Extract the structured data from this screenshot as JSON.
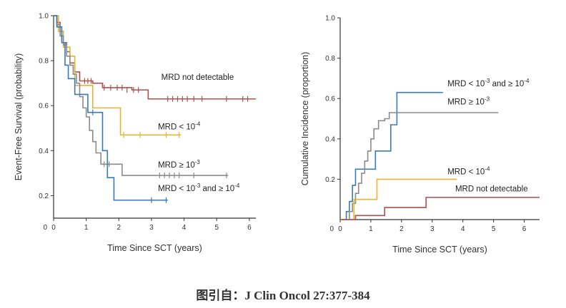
{
  "caption": "图引自：J Clin Oncol 27:377-384",
  "chart_data": [
    {
      "type": "line",
      "step": true,
      "xlabel": "Time Since SCT (years)",
      "ylabel": "Event-Free Survival (probability)",
      "xlim": [
        0,
        6.2
      ],
      "ylim": [
        0.1,
        1.0
      ],
      "xticks": [
        0,
        1,
        2,
        3,
        4,
        5,
        6
      ],
      "yticks": [
        1.0,
        0.8,
        0.6,
        0.4,
        0.2
      ],
      "grid": false,
      "series": [
        {
          "name": "MRD not detectable",
          "label_parts": [
            "MRD not detectable"
          ],
          "color": "#a9514f",
          "label_at": [
            3.3,
            0.715
          ],
          "points": [
            [
              0,
              1.0
            ],
            [
              0.1,
              0.97
            ],
            [
              0.2,
              0.93
            ],
            [
              0.3,
              0.88
            ],
            [
              0.4,
              0.84
            ],
            [
              0.5,
              0.79
            ],
            [
              0.65,
              0.75
            ],
            [
              0.8,
              0.71
            ],
            [
              1.2,
              0.7
            ],
            [
              1.5,
              0.68
            ],
            [
              2.1,
              0.68
            ],
            [
              2.4,
              0.67
            ],
            [
              2.9,
              0.67
            ],
            [
              2.9,
              0.63
            ],
            [
              6.2,
              0.63
            ]
          ],
          "censored": [
            [
              0.95,
              0.71
            ],
            [
              1.05,
              0.71
            ],
            [
              1.15,
              0.71
            ],
            [
              1.55,
              0.68
            ],
            [
              1.75,
              0.68
            ],
            [
              1.95,
              0.68
            ],
            [
              2.1,
              0.68
            ],
            [
              2.25,
              0.67
            ],
            [
              2.45,
              0.67
            ],
            [
              2.6,
              0.67
            ],
            [
              3.5,
              0.63
            ],
            [
              3.65,
              0.63
            ],
            [
              3.8,
              0.63
            ],
            [
              3.95,
              0.63
            ],
            [
              4.1,
              0.63
            ],
            [
              4.3,
              0.63
            ],
            [
              4.55,
              0.63
            ],
            [
              5.3,
              0.63
            ],
            [
              5.8,
              0.63
            ],
            [
              5.95,
              0.63
            ]
          ]
        },
        {
          "name": "MRD < 10⁻⁴",
          "label_parts": [
            "MRD < 10",
            "-4"
          ],
          "color": "#e8b42e",
          "label_at": [
            3.2,
            0.495
          ],
          "points": [
            [
              0,
              1.0
            ],
            [
              0.15,
              0.93
            ],
            [
              0.3,
              0.86
            ],
            [
              0.5,
              0.82
            ],
            [
              0.65,
              0.69
            ],
            [
              1.2,
              0.69
            ],
            [
              1.2,
              0.59
            ],
            [
              2.05,
              0.59
            ],
            [
              2.05,
              0.47
            ],
            [
              3.9,
              0.47
            ]
          ],
          "censored": [
            [
              2.15,
              0.47
            ],
            [
              2.65,
              0.47
            ],
            [
              3.45,
              0.47
            ],
            [
              3.85,
              0.47
            ]
          ]
        },
        {
          "name": "MRD ≥ 10⁻³",
          "label_parts": [
            "MRD ≥ 10",
            "-3"
          ],
          "color": "#8b8b8b",
          "label_at": [
            3.2,
            0.325
          ],
          "points": [
            [
              0,
              1.0
            ],
            [
              0.1,
              0.96
            ],
            [
              0.2,
              0.91
            ],
            [
              0.3,
              0.87
            ],
            [
              0.4,
              0.82
            ],
            [
              0.5,
              0.78
            ],
            [
              0.6,
              0.74
            ],
            [
              0.7,
              0.7
            ],
            [
              0.8,
              0.64
            ],
            [
              0.9,
              0.59
            ],
            [
              1.0,
              0.55
            ],
            [
              1.1,
              0.49
            ],
            [
              1.2,
              0.44
            ],
            [
              1.3,
              0.39
            ],
            [
              1.45,
              0.34
            ],
            [
              1.7,
              0.34
            ],
            [
              2.1,
              0.29
            ],
            [
              5.35,
              0.29
            ]
          ],
          "censored": [
            [
              1.55,
              0.34
            ],
            [
              1.7,
              0.34
            ],
            [
              3.25,
              0.29
            ],
            [
              3.4,
              0.29
            ],
            [
              3.55,
              0.29
            ],
            [
              3.7,
              0.29
            ],
            [
              3.85,
              0.29
            ],
            [
              4.3,
              0.29
            ],
            [
              5.3,
              0.29
            ]
          ]
        },
        {
          "name": "MRD < 10⁻³ and ≥ 10⁻⁴",
          "label_parts": [
            "MRD < 10",
            "-3",
            "  and ≥ 10",
            "-4"
          ],
          "color": "#3a7ab3",
          "label_at": [
            3.2,
            0.22
          ],
          "points": [
            [
              0,
              1.0
            ],
            [
              0.1,
              0.95
            ],
            [
              0.25,
              0.88
            ],
            [
              0.35,
              0.78
            ],
            [
              0.45,
              0.72
            ],
            [
              0.65,
              0.65
            ],
            [
              1.05,
              0.65
            ],
            [
              1.05,
              0.57
            ],
            [
              1.5,
              0.57
            ],
            [
              1.5,
              0.4
            ],
            [
              1.65,
              0.4
            ],
            [
              1.65,
              0.28
            ],
            [
              1.85,
              0.28
            ],
            [
              1.85,
              0.18
            ],
            [
              3.5,
              0.18
            ]
          ],
          "censored": [
            [
              1.2,
              0.57
            ],
            [
              3.0,
              0.18
            ],
            [
              3.45,
              0.18
            ]
          ]
        }
      ]
    },
    {
      "type": "line",
      "step": true,
      "xlabel": "Time Since SCT (years)",
      "ylabel": "Cumulative Incidence (proportion)",
      "xlim": [
        0,
        6.5
      ],
      "ylim": [
        0,
        1.0
      ],
      "xticks": [
        0,
        1,
        2,
        3,
        4,
        5,
        6
      ],
      "yticks": [
        1.0,
        0.8,
        0.6,
        0.4,
        0.2
      ],
      "grid": false,
      "series": [
        {
          "name": "MRD < 10⁻³ and ≥ 10⁻⁴",
          "label_parts": [
            "MRD < 10",
            "-3",
            "  and ≥ 10",
            "-4"
          ],
          "color": "#3a7ab3",
          "label_at": [
            3.5,
            0.66
          ],
          "points": [
            [
              0,
              0
            ],
            [
              0.2,
              0
            ],
            [
              0.2,
              0.04
            ],
            [
              0.3,
              0.09
            ],
            [
              0.4,
              0.17
            ],
            [
              0.5,
              0.25
            ],
            [
              1.15,
              0.25
            ],
            [
              1.15,
              0.34
            ],
            [
              1.65,
              0.34
            ],
            [
              1.65,
              0.47
            ],
            [
              1.85,
              0.47
            ],
            [
              1.85,
              0.63
            ],
            [
              3.35,
              0.63
            ]
          ]
        },
        {
          "name": "MRD ≥ 10⁻³",
          "label_parts": [
            "MRD ≥ 10",
            "-3"
          ],
          "color": "#8b8b8b",
          "label_at": [
            3.5,
            0.57
          ],
          "points": [
            [
              0,
              0
            ],
            [
              0.3,
              0
            ],
            [
              0.3,
              0.04
            ],
            [
              0.4,
              0.08
            ],
            [
              0.5,
              0.13
            ],
            [
              0.6,
              0.18
            ],
            [
              0.7,
              0.23
            ],
            [
              0.8,
              0.29
            ],
            [
              0.9,
              0.34
            ],
            [
              1.0,
              0.4
            ],
            [
              1.1,
              0.45
            ],
            [
              1.25,
              0.49
            ],
            [
              1.45,
              0.5
            ],
            [
              1.6,
              0.53
            ],
            [
              2.0,
              0.53
            ],
            [
              5.15,
              0.53
            ]
          ]
        },
        {
          "name": "MRD < 10⁻⁴",
          "label_parts": [
            "MRD < 10",
            "-4"
          ],
          "color": "#e8b42e",
          "label_at": [
            3.5,
            0.225
          ],
          "points": [
            [
              0,
              0
            ],
            [
              0.45,
              0
            ],
            [
              0.45,
              0.1
            ],
            [
              1.2,
              0.1
            ],
            [
              1.2,
              0.2
            ],
            [
              3.8,
              0.2
            ]
          ]
        },
        {
          "name": "MRD not detectable",
          "label_parts": [
            "MRD not detectable"
          ],
          "color": "#a9514f",
          "label_at": [
            3.75,
            0.14
          ],
          "points": [
            [
              0,
              0
            ],
            [
              0.5,
              0
            ],
            [
              0.5,
              0.02
            ],
            [
              1.45,
              0.02
            ],
            [
              1.45,
              0.06
            ],
            [
              2.8,
              0.06
            ],
            [
              2.8,
              0.11
            ],
            [
              6.5,
              0.11
            ]
          ]
        }
      ]
    }
  ]
}
